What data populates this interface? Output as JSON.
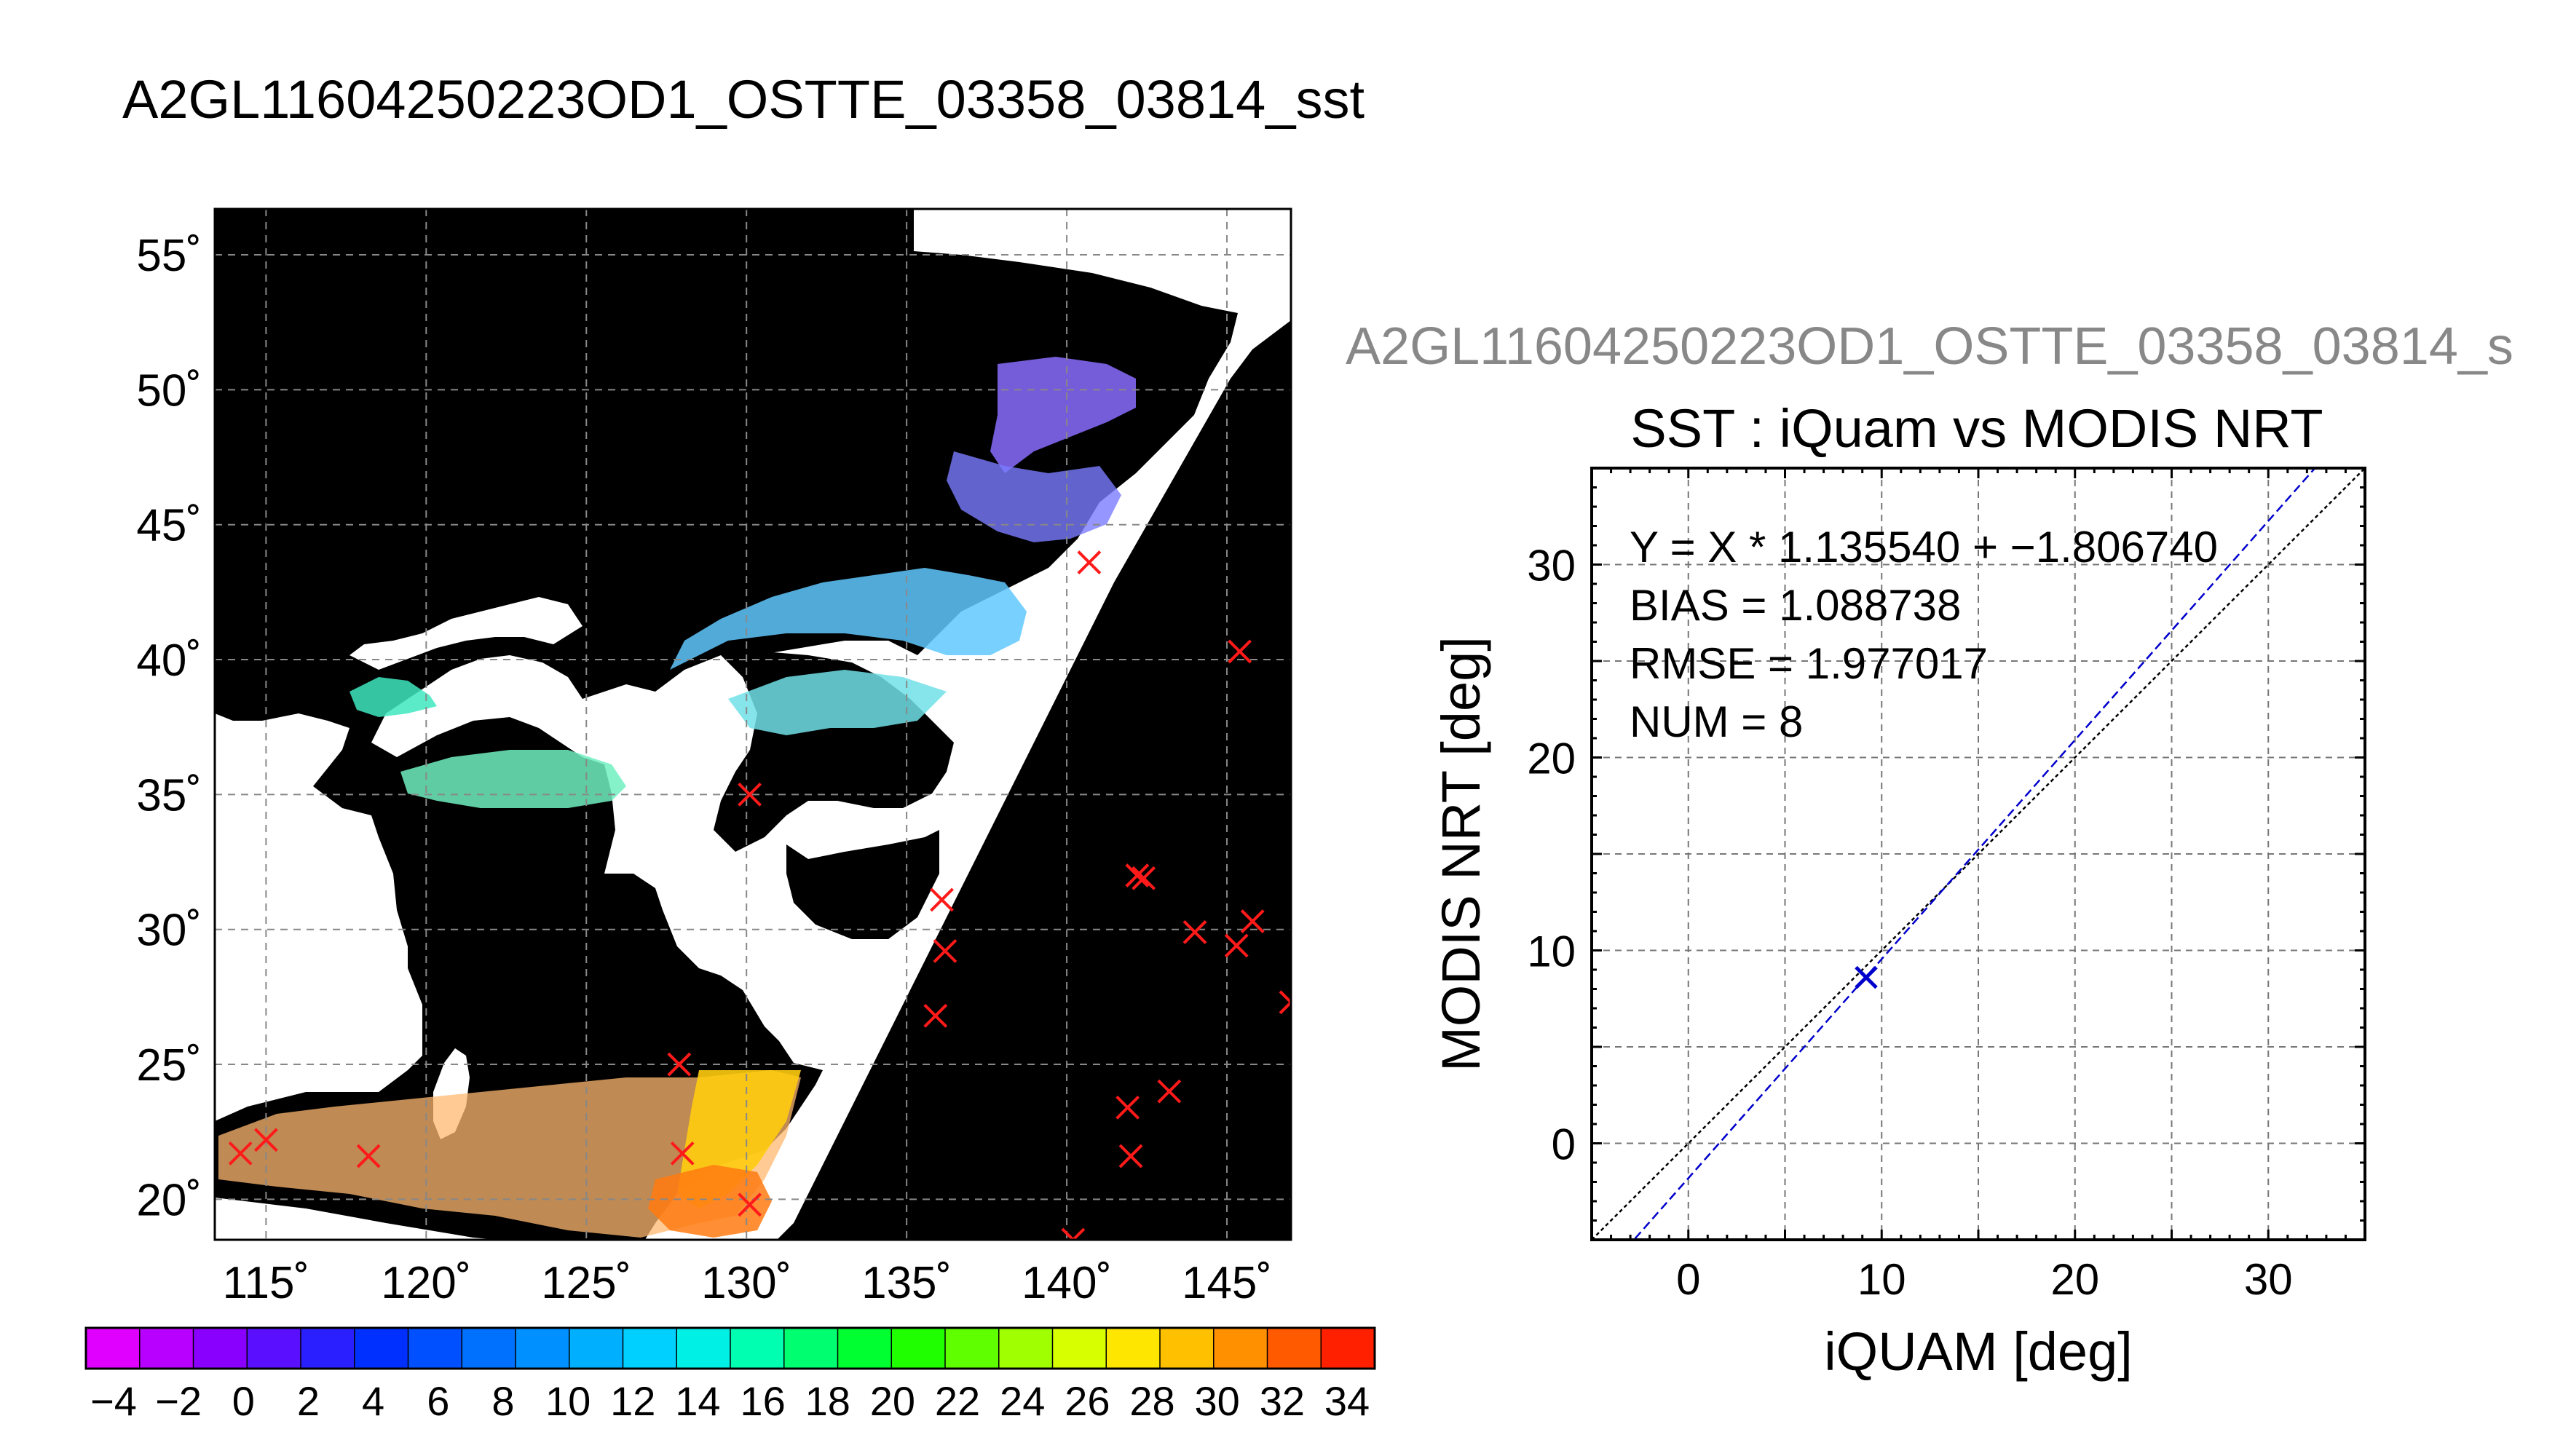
{
  "page_title": "A2GL11604250223OD1_OSTTE_03358_03814_sst",
  "map": {
    "lat_ticks": [
      "55˚",
      "50˚",
      "45˚",
      "40˚",
      "35˚",
      "30˚",
      "25˚",
      "20˚"
    ],
    "lon_ticks": [
      "115˚",
      "120˚",
      "125˚",
      "130˚",
      "135˚",
      "140˚",
      "145˚"
    ],
    "lat_values": [
      55,
      50,
      45,
      40,
      35,
      30,
      25,
      20
    ],
    "lon_values": [
      115,
      120,
      125,
      130,
      135,
      140,
      145
    ],
    "lon_range": [
      113.4,
      147.0
    ],
    "lat_range": [
      18.5,
      56.7
    ],
    "background_color": "#000000",
    "land_color": "#ffffff",
    "marker_color": "#ff1a1a",
    "in_situ_markers": [
      [
        114.2,
        21.7
      ],
      [
        115.0,
        22.2
      ],
      [
        118.2,
        21.6
      ],
      [
        127.9,
        25.0
      ],
      [
        128.0,
        21.7
      ],
      [
        130.1,
        35.0
      ],
      [
        130.1,
        19.8
      ],
      [
        136.1,
        31.1
      ],
      [
        136.2,
        29.2
      ],
      [
        135.9,
        26.8
      ],
      [
        140.2,
        18.5
      ],
      [
        140.7,
        43.6
      ],
      [
        141.9,
        23.4
      ],
      [
        142.0,
        21.6
      ],
      [
        142.2,
        32.0
      ],
      [
        142.4,
        31.9
      ],
      [
        143.2,
        24.0
      ],
      [
        144.0,
        29.9
      ],
      [
        145.3,
        29.4
      ],
      [
        145.4,
        40.3
      ],
      [
        145.8,
        30.3
      ],
      [
        147.0,
        27.3
      ]
    ]
  },
  "colorbar": {
    "tick_labels": [
      "−4",
      "−2",
      "0",
      "2",
      "4",
      "6",
      "8",
      "10",
      "12",
      "14",
      "16",
      "18",
      "20",
      "22",
      "24",
      "26",
      "28",
      "30",
      "32",
      "34"
    ],
    "colors": [
      "#e000ff",
      "#b700ff",
      "#8a00ff",
      "#5a10ff",
      "#2a20ff",
      "#0030ff",
      "#0050ff",
      "#0070ff",
      "#0090ff",
      "#00b0ff",
      "#00d0ff",
      "#00f0e6",
      "#00ffb0",
      "#00ff70",
      "#00ff30",
      "#20ff00",
      "#60ff00",
      "#a0ff00",
      "#d8ff00",
      "#ffe600",
      "#ffc000",
      "#ff9000",
      "#ff5a00",
      "#ff2000"
    ]
  },
  "scatter_header": "A2GL11604250223OD1_OSTTE_03358_03814_s",
  "chart_data": {
    "type": "scatter",
    "title": "SST : iQuam vs MODIS NRT",
    "xlabel": "iQUAM [deg]",
    "ylabel": "MODIS NRT [deg]",
    "xlim": [
      -5,
      35
    ],
    "ylim": [
      -5,
      35
    ],
    "x_ticks": [
      0,
      10,
      20,
      30
    ],
    "y_ticks": [
      0,
      10,
      20,
      30
    ],
    "grid": true,
    "points": [
      {
        "x": 9.2,
        "y": 8.6
      }
    ],
    "fit": {
      "slope": 1.13554,
      "intercept": -1.80674,
      "color": "#0000cc"
    },
    "identity_line_color": "#000000",
    "stats": [
      "Y = X * 1.135540 + −1.806740",
      "BIAS = 1.088738",
      "RMSE = 1.977017",
      "NUM = 8"
    ]
  }
}
